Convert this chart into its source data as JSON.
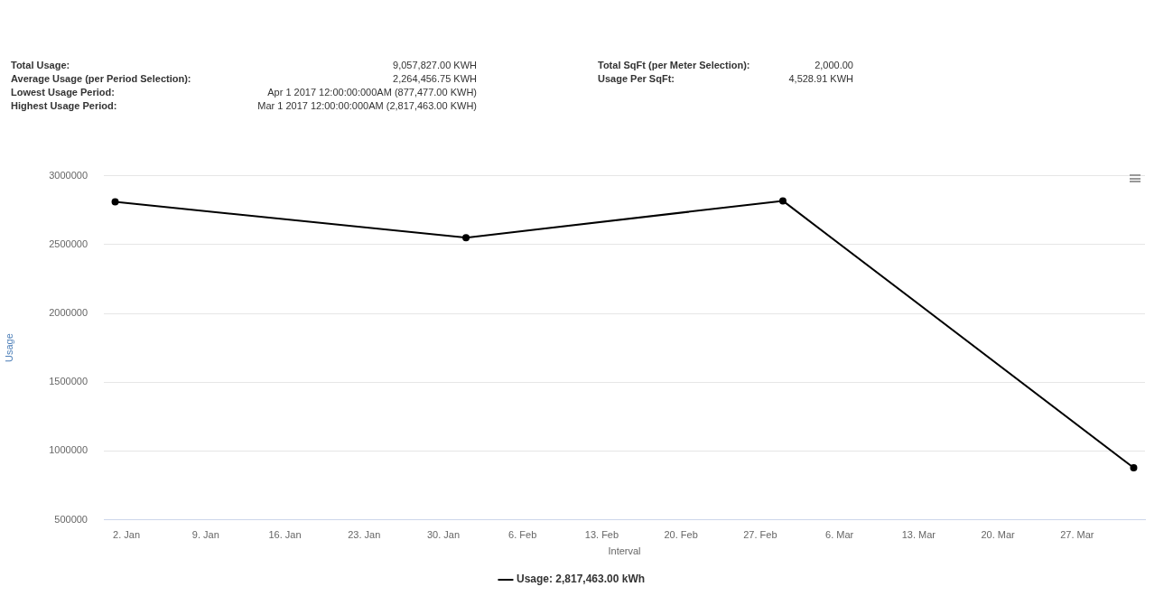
{
  "chart_data": {
    "type": "line",
    "annotations": [
      "Total Usage:",
      "9,057,827.00 KWH",
      "Average Usage (per Period Selection):",
      "2,264,456.75 KWH",
      "Lowest Usage Period:",
      "Apr 1 2017 12:00:00:000AM (877,477.00 KWH)",
      "Highest Usage Period:",
      "Mar 1 2017 12:00:00:000AM (2,817,463.00 KWH)",
      "Total SqFt (per Meter Selection):",
      "2,000.00",
      "Usage Per SqFt:",
      "4,528.91 KWH"
    ],
    "xlabel": "Interval",
    "ylabel": "Usage",
    "x": [
      "2017-01-01",
      "2017-02-01",
      "2017-03-01",
      "2017-04-01"
    ],
    "series": [
      {
        "name": "Usage: 2,817,463.00 kWh",
        "color": "#000000",
        "values": [
          2810000,
          2550000,
          2817463,
          877477
        ]
      }
    ],
    "xlim": [
      "2016-12-31",
      "2017-04-02"
    ],
    "xticks": [
      {
        "value": "2017-01-02",
        "label": "2. Jan"
      },
      {
        "value": "2017-01-09",
        "label": "9. Jan"
      },
      {
        "value": "2017-01-16",
        "label": "16. Jan"
      },
      {
        "value": "2017-01-23",
        "label": "23. Jan"
      },
      {
        "value": "2017-01-30",
        "label": "30. Jan"
      },
      {
        "value": "2017-02-06",
        "label": "6. Feb"
      },
      {
        "value": "2017-02-13",
        "label": "13. Feb"
      },
      {
        "value": "2017-02-20",
        "label": "20. Feb"
      },
      {
        "value": "2017-02-27",
        "label": "27. Feb"
      },
      {
        "value": "2017-03-06",
        "label": "6. Mar"
      },
      {
        "value": "2017-03-13",
        "label": "13. Mar"
      },
      {
        "value": "2017-03-20",
        "label": "20. Mar"
      },
      {
        "value": "2017-03-27",
        "label": "27. Mar"
      }
    ],
    "ylim": [
      500000,
      3000000
    ],
    "yticks": [
      500000,
      1000000,
      1500000,
      2000000,
      2500000,
      3000000
    ],
    "grid": "y",
    "legend": "bottom",
    "marker": "circle",
    "line_style": "solid"
  }
}
